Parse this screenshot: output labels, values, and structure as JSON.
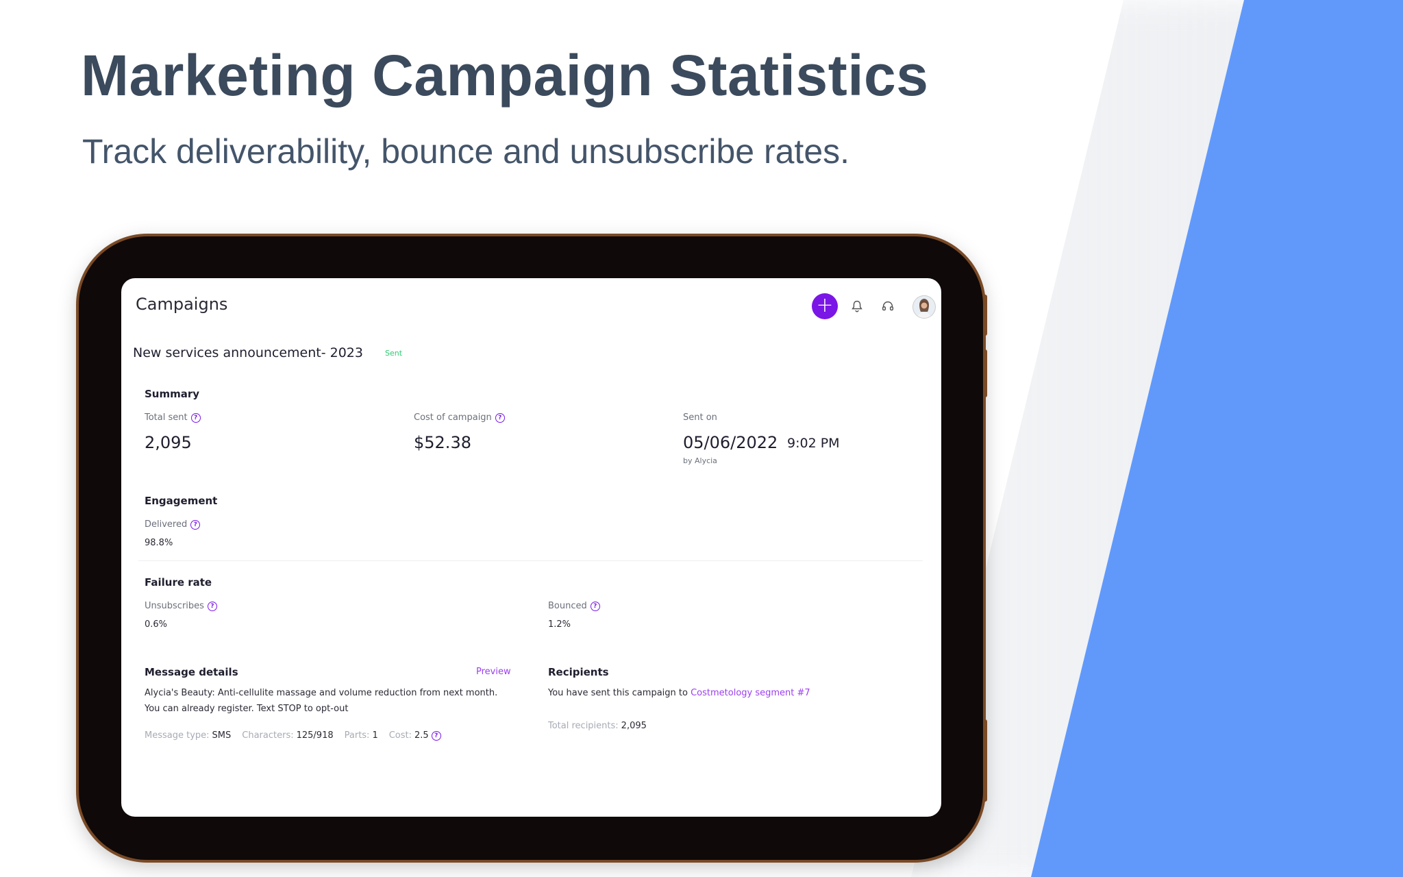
{
  "hero": {
    "title": "Marketing Campaign Statistics",
    "subtitle": "Track deliverability, bounce and unsubscribe rates."
  },
  "colors": {
    "accent": "#7a16e6",
    "link": "#9b3ef0",
    "background_shape": "#6199fb",
    "status_sent": "#2ecc71"
  },
  "app": {
    "title": "Campaigns",
    "icons": [
      "plus-icon",
      "bell-icon",
      "headset-icon",
      "avatar"
    ]
  },
  "campaign": {
    "name": "New services announcement- 2023",
    "status": "Sent"
  },
  "summary": {
    "title": "Summary",
    "total_sent_label": "Total sent",
    "total_sent_value": "2,095",
    "cost_label": "Cost of campaign",
    "cost_value": "$52.38",
    "sent_on_label": "Sent on",
    "sent_on_date": "05/06/2022",
    "sent_on_time": "9:02 PM",
    "sent_by": "by Alycia"
  },
  "engagement": {
    "title": "Engagement",
    "delivered_label": "Delivered",
    "delivered_value": "98.8%"
  },
  "failure": {
    "title": "Failure rate",
    "unsubscribes_label": "Unsubscribes",
    "unsubscribes_value": "0.6%",
    "bounced_label": "Bounced",
    "bounced_value": "1.2%"
  },
  "message": {
    "title": "Message details",
    "preview_link": "Preview",
    "line1": "Alycia's Beauty: Anti-cellulite massage and volume reduction from next month.",
    "line2": "You can already register. Text STOP to opt-out",
    "type_label": "Message type:",
    "type_value": "SMS",
    "chars_label": "Characters:",
    "chars_value": "125/918",
    "parts_label": "Parts:",
    "parts_value": "1",
    "cost_label": "Cost:",
    "cost_value": "2.5"
  },
  "recipients": {
    "title": "Recipients",
    "text": "You have sent this campaign to",
    "segment_link": "Costmetology segment #7",
    "total_label": "Total recipients:",
    "total_value": "2,095"
  }
}
